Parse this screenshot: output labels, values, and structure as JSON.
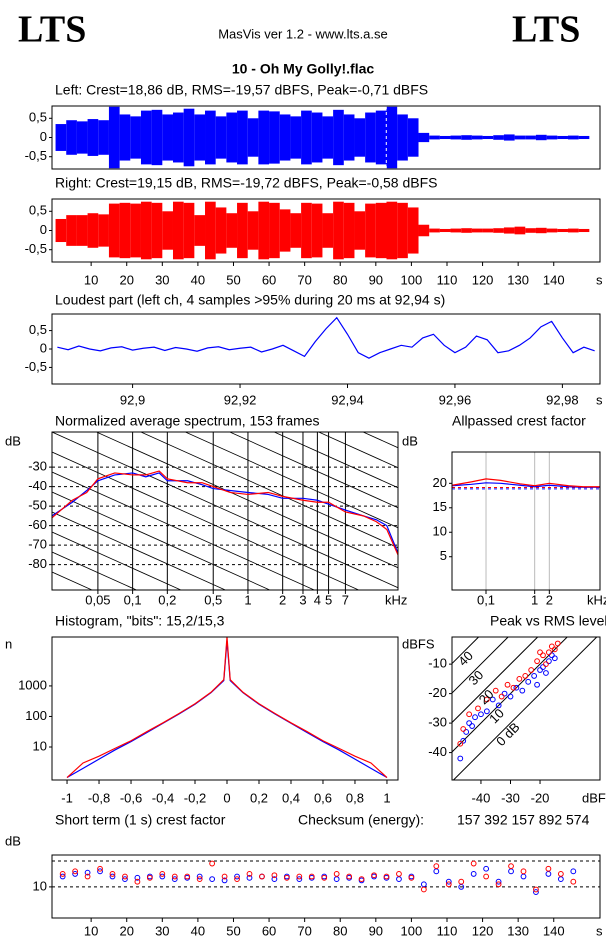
{
  "header": {
    "logo_left": "LTS",
    "app": "MasVis ver 1.2 - www.lts.a.se",
    "logo_right": "LTS",
    "file": "10 - Oh My Golly!.flac"
  },
  "chart_data": [
    {
      "type": "waveform",
      "title": "Left: Crest=18,86 dB, RMS=-19,57 dBFS, Peak=-0,71 dBFS",
      "color": "#0000ff",
      "x": [
        1.5,
        4.5,
        7.5,
        10.5,
        13.5,
        16.5,
        19.5,
        22.5,
        25.5,
        28.5,
        31.5,
        34.5,
        37.5,
        40.5,
        43.5,
        46.5,
        49.5,
        52.5,
        55.5,
        58.5,
        61.5,
        64.5,
        67.5,
        70.5,
        73.5,
        76.5,
        79.5,
        82.5,
        85.5,
        88.5,
        91.5,
        94.5,
        97.5,
        100.5,
        103.5,
        106.5,
        109.5,
        112.5,
        115.5,
        118.5,
        121.5,
        124.5,
        127.5,
        130.5,
        133.5,
        136.5,
        139.5,
        142.5,
        145.5,
        148.5
      ],
      "values": [
        0.35,
        0.45,
        0.42,
        0.48,
        0.45,
        0.8,
        0.6,
        0.55,
        0.7,
        0.72,
        0.6,
        0.65,
        0.75,
        0.6,
        0.7,
        0.55,
        0.65,
        0.7,
        0.5,
        0.7,
        0.68,
        0.6,
        0.55,
        0.7,
        0.65,
        0.55,
        0.72,
        0.6,
        0.5,
        0.65,
        0.7,
        0.8,
        0.6,
        0.5,
        0.12,
        0.05,
        0.04,
        0.05,
        0.06,
        0.05,
        0.04,
        0.06,
        0.08,
        0.05,
        0.05,
        0.07,
        0.05,
        0.04,
        0.05,
        0.04
      ],
      "marker_x": 92.94,
      "xlim": [
        -1,
        153
      ],
      "ylim": [
        -0.82,
        0.82
      ],
      "yticks": [
        {
          "value": 0.5,
          "label": "0,5"
        },
        0,
        {
          "value": -0.5,
          "label": "-0,5"
        }
      ]
    },
    {
      "type": "waveform",
      "title": "Right: Crest=19,15 dB, RMS=-19,72 dBFS, Peak=-0,58 dBFS",
      "color": "#ff0000",
      "x": [
        1.5,
        4.5,
        7.5,
        10.5,
        13.5,
        16.5,
        19.5,
        22.5,
        25.5,
        28.5,
        31.5,
        34.5,
        37.5,
        40.5,
        43.5,
        46.5,
        49.5,
        52.5,
        55.5,
        58.5,
        61.5,
        64.5,
        67.5,
        70.5,
        73.5,
        76.5,
        79.5,
        82.5,
        85.5,
        88.5,
        91.5,
        94.5,
        97.5,
        100.5,
        103.5,
        106.5,
        109.5,
        112.5,
        115.5,
        118.5,
        121.5,
        124.5,
        127.5,
        130.5,
        133.5,
        136.5,
        139.5,
        142.5,
        145.5,
        148.5
      ],
      "values": [
        0.3,
        0.4,
        0.4,
        0.45,
        0.42,
        0.7,
        0.72,
        0.7,
        0.75,
        0.72,
        0.5,
        0.75,
        0.72,
        0.4,
        0.75,
        0.6,
        0.45,
        0.72,
        0.5,
        0.75,
        0.72,
        0.55,
        0.45,
        0.72,
        0.7,
        0.45,
        0.75,
        0.72,
        0.5,
        0.7,
        0.72,
        0.75,
        0.72,
        0.6,
        0.15,
        0.05,
        0.04,
        0.05,
        0.06,
        0.05,
        0.05,
        0.06,
        0.08,
        0.1,
        0.06,
        0.07,
        0.05,
        0.04,
        0.05,
        0.04
      ],
      "xlim": [
        -1,
        153
      ],
      "ylim": [
        -0.82,
        0.82
      ],
      "yticks": [
        {
          "value": 0.5,
          "label": "0,5"
        },
        0,
        {
          "value": -0.5,
          "label": "-0,5"
        }
      ],
      "xticks": [
        10,
        20,
        30,
        40,
        50,
        60,
        70,
        80,
        90,
        100,
        110,
        120,
        130,
        140
      ],
      "xlabel": "s"
    },
    {
      "type": "line",
      "title": "Loudest part (left  ch, 4 samples >95% during 20 ms at 92,94 s)",
      "color": "#0000ff",
      "x": [
        92.886,
        92.888,
        92.89,
        92.892,
        92.894,
        92.896,
        92.898,
        92.9,
        92.902,
        92.904,
        92.906,
        92.908,
        92.91,
        92.912,
        92.914,
        92.916,
        92.918,
        92.92,
        92.922,
        92.924,
        92.926,
        92.928,
        92.93,
        92.932,
        92.934,
        92.936,
        92.938,
        92.94,
        92.942,
        92.944,
        92.946,
        92.948,
        92.95,
        92.952,
        92.954,
        92.956,
        92.958,
        92.96,
        92.962,
        92.964,
        92.966,
        92.968,
        92.97,
        92.972,
        92.974,
        92.976,
        92.978,
        92.98,
        92.982,
        92.984,
        92.986
      ],
      "values": [
        0.05,
        -0.02,
        0.08,
        0.0,
        -0.05,
        0.03,
        0.06,
        -0.03,
        0.02,
        0.05,
        -0.04,
        0.04,
        0.0,
        -0.06,
        0.03,
        0.06,
        -0.02,
        0.02,
        0.05,
        -0.08,
        0.0,
        0.1,
        -0.05,
        -0.2,
        0.2,
        0.55,
        0.85,
        0.4,
        -0.1,
        -0.25,
        -0.1,
        0.0,
        0.1,
        0.05,
        0.3,
        0.4,
        0.1,
        -0.1,
        0.05,
        0.35,
        0.25,
        -0.1,
        -0.05,
        0.1,
        0.3,
        0.6,
        0.75,
        0.3,
        -0.1,
        0.05,
        -0.05
      ],
      "xlim": [
        92.885,
        92.987
      ],
      "ylim": [
        -0.95,
        0.95
      ],
      "yticks": [
        {
          "value": 0.5,
          "label": "0,5"
        },
        0,
        {
          "value": -0.5,
          "label": "-0,5"
        }
      ],
      "xticks": [
        {
          "value": 92.9,
          "label": "92,9"
        },
        {
          "value": 92.92,
          "label": "92,92"
        },
        {
          "value": 92.94,
          "label": "92,94"
        },
        {
          "value": 92.96,
          "label": "92,96"
        },
        {
          "value": 92.98,
          "label": "92,98"
        }
      ],
      "xlabel": "s"
    },
    {
      "type": "line",
      "title": "Normalized average spectrum, 153 frames",
      "ylabel": "dB",
      "xlabel": "kHz",
      "xlog": true,
      "xgrid": true,
      "ygrid": true,
      "x": [
        0.02,
        0.03,
        0.04,
        0.05,
        0.07,
        0.1,
        0.13,
        0.17,
        0.2,
        0.3,
        0.4,
        0.5,
        0.7,
        1,
        1.5,
        2,
        3,
        4,
        5,
        7,
        10,
        13,
        16,
        20
      ],
      "series": [
        {
          "color": "#0000ff",
          "values": [
            -55,
            -48,
            -42,
            -37,
            -34,
            -33,
            -35,
            -33,
            -37,
            -37,
            -39,
            -41,
            -42,
            -43,
            -44,
            -46,
            -46,
            -47,
            -49,
            -52,
            -55,
            -57,
            -60,
            -74
          ]
        },
        {
          "color": "#ff0000",
          "values": [
            -56,
            -47,
            -43,
            -36,
            -33,
            -34,
            -34,
            -32,
            -36,
            -38,
            -38,
            -40,
            -43,
            -44,
            -43,
            -45,
            -47,
            -48,
            -48,
            -53,
            -55,
            -58,
            -62,
            -75
          ]
        }
      ],
      "xlim": [
        0.02,
        20
      ],
      "ylim": [
        -93,
        -12
      ],
      "yticks": [
        -30,
        -40,
        -50,
        -60,
        -70,
        -80
      ],
      "xticks": [
        {
          "value": 0.05,
          "label": "0,05"
        },
        {
          "value": 0.1,
          "label": "0,1"
        },
        {
          "value": 0.2,
          "label": "0,2"
        },
        {
          "value": 0.5,
          "label": "0,5"
        },
        1,
        2,
        3,
        4,
        5,
        7
      ]
    },
    {
      "type": "line",
      "title": "Allpassed crest factor",
      "ylabel": "dB",
      "xlabel": "kHz",
      "xlog": true,
      "xgrid": true,
      "x": [
        0.02,
        0.05,
        0.1,
        0.2,
        0.5,
        1,
        2,
        5,
        10,
        22
      ],
      "series": [
        {
          "color": "#0000ff",
          "values": [
            19.5,
            19.8,
            20.1,
            20,
            19.6,
            19.3,
            19.6,
            19.3,
            19.2,
            19.2
          ]
        },
        {
          "color": "#ff0000",
          "values": [
            19.6,
            20.3,
            20.9,
            20.6,
            19.9,
            19.5,
            20,
            19.5,
            19.3,
            19.3
          ]
        }
      ],
      "reference_lines": [
        {
          "value": 18.86,
          "color": "#0000ff"
        },
        {
          "value": 19.15,
          "color": "#ff0000"
        }
      ],
      "xlim": [
        0.02,
        22
      ],
      "ylim": [
        -1.8,
        26.4
      ],
      "yticks": [
        20,
        15,
        10,
        5
      ],
      "xticks": [
        {
          "value": 0.1,
          "label": "0,1"
        },
        1,
        2
      ]
    },
    {
      "type": "line",
      "title": "Histogram, \"bits\": 15,2/15,3",
      "ylabel": "n",
      "ylog": true,
      "x": [
        -1,
        -0.9,
        -0.8,
        -0.7,
        -0.6,
        -0.5,
        -0.4,
        -0.3,
        -0.2,
        -0.1,
        -0.02,
        0,
        0.02,
        0.1,
        0.2,
        0.3,
        0.4,
        0.5,
        0.6,
        0.7,
        0.8,
        0.9,
        1
      ],
      "series": [
        {
          "color": "#0000ff",
          "values": [
            1,
            2,
            4,
            8,
            15,
            30,
            60,
            120,
            250,
            600,
            1500,
            30000,
            1500,
            600,
            250,
            120,
            60,
            30,
            15,
            8,
            4,
            2,
            1
          ]
        },
        {
          "color": "#ff0000",
          "values": [
            1,
            3,
            5,
            9,
            16,
            32,
            62,
            125,
            260,
            620,
            1600,
            40000,
            1600,
            620,
            260,
            125,
            62,
            32,
            16,
            9,
            5,
            3,
            1
          ]
        }
      ],
      "xlim": [
        -1.094,
        1.069
      ],
      "ylim": [
        0.83,
        40000
      ],
      "yticks": [
        1000,
        100,
        10
      ],
      "xticks": [
        -1,
        {
          "value": -0.8,
          "label": "-0,8"
        },
        {
          "value": -0.6,
          "label": "-0,6"
        },
        {
          "value": -0.4,
          "label": "-0,4"
        },
        {
          "value": -0.2,
          "label": "-0,2"
        },
        0,
        {
          "value": 0.2,
          "label": "0,2"
        },
        {
          "value": 0.4,
          "label": "0,4"
        },
        {
          "value": 0.6,
          "label": "0,6"
        },
        {
          "value": 0.8,
          "label": "0,8"
        },
        1
      ]
    },
    {
      "type": "scatter",
      "title": "Peak vs RMS level",
      "ylabel": "dBFS",
      "xlabel": "dBFS",
      "series": [
        {
          "color": "#0000ff",
          "x": [
            -47,
            -46,
            -45,
            -44,
            -43,
            -42,
            -40,
            -38,
            -36,
            -34,
            -32,
            -30,
            -28,
            -26,
            -24,
            -22,
            -21,
            -20,
            -19,
            -18,
            -17,
            -16,
            -15
          ],
          "values": [
            -42,
            -36,
            -33,
            -30,
            -31,
            -28,
            -27,
            -26,
            -22,
            -24,
            -20,
            -21,
            -18,
            -19,
            -16,
            -14,
            -17,
            -12,
            -11,
            -13,
            -9,
            -7,
            -8
          ]
        },
        {
          "color": "#ff0000",
          "x": [
            -47,
            -46,
            -44,
            -41,
            -38,
            -35,
            -33,
            -31,
            -29,
            -27,
            -25,
            -23,
            -21,
            -19,
            -18,
            -17,
            -16,
            -15,
            -14,
            -20
          ],
          "values": [
            -37,
            -32,
            -27,
            -25,
            -22,
            -19,
            -21,
            -17,
            -18,
            -15,
            -14,
            -12,
            -9,
            -7,
            -10,
            -6,
            -4,
            -5,
            -3,
            -6
          ]
        }
      ],
      "crest_lines": [
        {
          "value": 40,
          "label": "40"
        },
        {
          "value": 30,
          "label": "30"
        },
        {
          "value": 20,
          "label": "20"
        },
        {
          "value": 10,
          "label": "10"
        },
        {
          "value": 0,
          "label": "0 dB"
        }
      ],
      "xlim": [
        -49.8,
        0.3
      ],
      "ylim": [
        -49.3,
        -0.8
      ],
      "yticks": [
        -10,
        -20,
        -30,
        -40
      ],
      "xticks": [
        -40,
        -30,
        -20
      ]
    },
    {
      "type": "scatter",
      "title": "Short term (1 s) crest factor",
      "checksum_label": "Checksum (energy):",
      "checksum": "157 392 157 892 574",
      "ylabel": "dB",
      "xlabel": "s",
      "x": [
        2,
        5.5,
        9,
        12.5,
        16,
        19.5,
        23,
        26.5,
        30,
        33.5,
        37,
        40.5,
        44,
        47.5,
        51,
        54.5,
        58,
        61.5,
        65,
        68.5,
        72,
        75.5,
        79,
        82.5,
        86,
        89.5,
        93,
        96.5,
        100,
        103.5,
        107,
        110.5,
        114,
        117.5,
        121,
        124.5,
        128,
        131.5,
        135,
        138.5,
        142,
        145.5
      ],
      "series": [
        {
          "color": "#0000ff",
          "values": [
            14,
            15,
            15.5,
            16,
            14,
            13,
            13.5,
            14,
            14,
            13,
            13.5,
            14,
            13,
            12.5,
            14,
            13.5,
            14,
            13,
            14,
            13,
            13.5,
            14,
            13,
            13.5,
            12.5,
            14,
            13.5,
            13,
            14,
            11,
            16,
            12,
            10,
            15,
            17,
            12,
            16,
            14,
            8,
            15,
            13,
            16
          ]
        },
        {
          "color": "#ff0000",
          "values": [
            15,
            16,
            14,
            17,
            15,
            14,
            12,
            13.5,
            15,
            14,
            14,
            13,
            19,
            14,
            13,
            15,
            14,
            14.5,
            13.5,
            14,
            14,
            13.5,
            15,
            14,
            13,
            14.5,
            14,
            15,
            13.5,
            9,
            18,
            11,
            12,
            19,
            14,
            11,
            18,
            16,
            9,
            17,
            15,
            12
          ]
        }
      ],
      "reference_lines": [
        {
          "value": 10,
          "color": "#000000"
        },
        {
          "value": 20,
          "color": "#000000"
        }
      ],
      "xlim": [
        -1,
        153
      ],
      "ylim": [
        -2,
        22.3
      ],
      "yticks": [
        10
      ],
      "xticks": [
        10,
        20,
        30,
        40,
        50,
        60,
        70,
        80,
        90,
        100,
        110,
        120,
        130,
        140
      ]
    }
  ]
}
